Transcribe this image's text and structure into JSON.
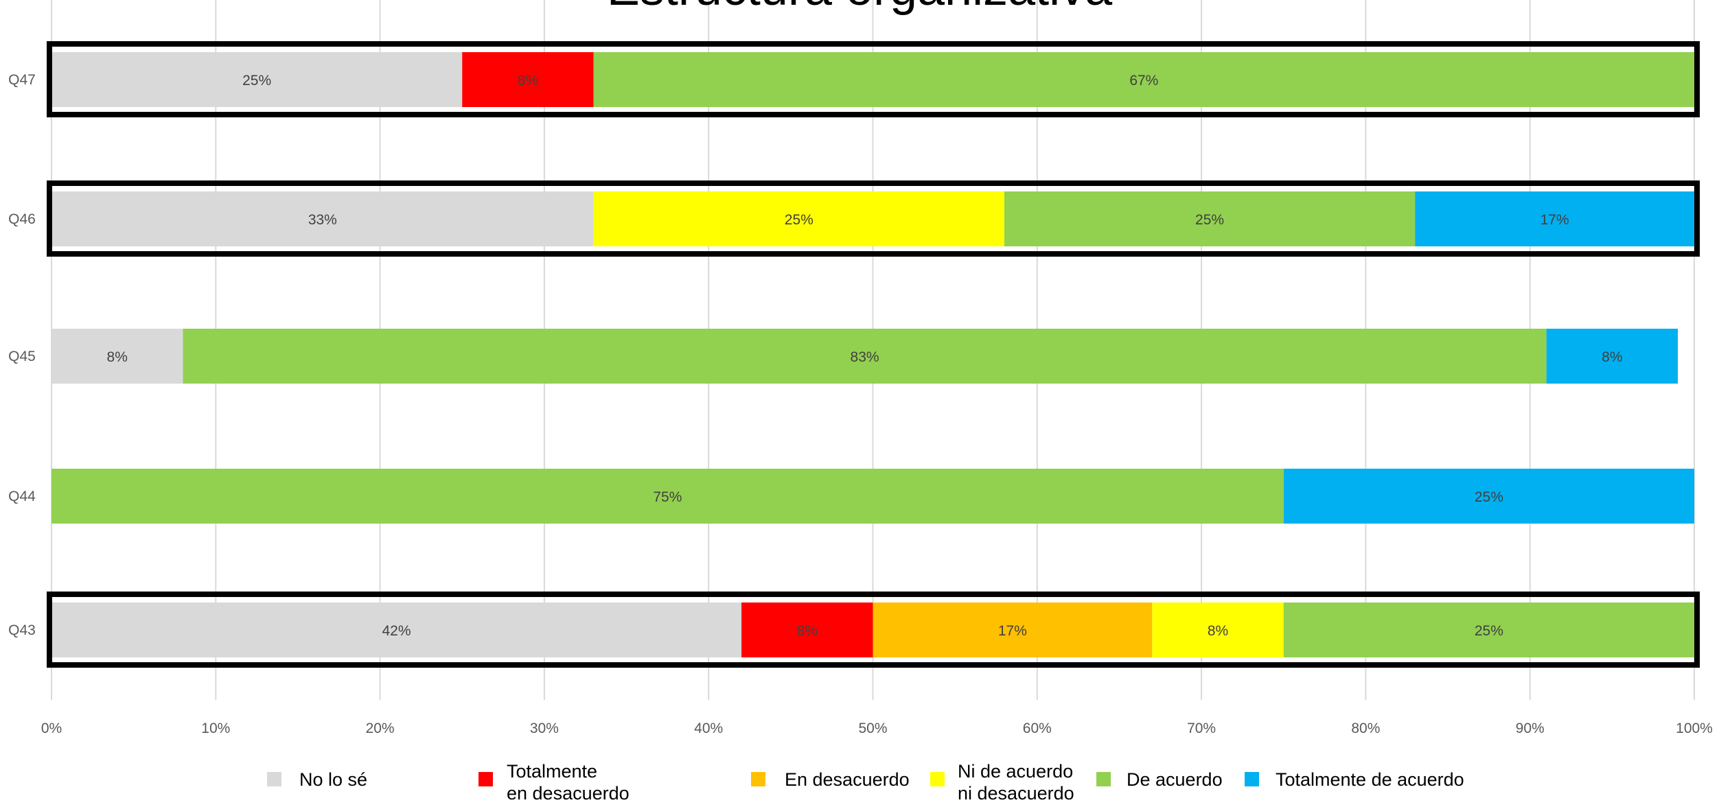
{
  "chart_data": {
    "type": "bar",
    "orientation": "horizontal",
    "stacked": true,
    "percent": true,
    "title": "Estructura organizativa",
    "xlim": [
      0,
      100
    ],
    "x_ticks": [
      "0%",
      "10%",
      "20%",
      "30%",
      "40%",
      "50%",
      "60%",
      "70%",
      "80%",
      "90%",
      "100%"
    ],
    "grid": "vertical",
    "legend_position": "bottom",
    "categories": [
      "Q47",
      "Q46",
      "Q45",
      "Q44",
      "Q43"
    ],
    "highlighted": [
      "Q47",
      "Q46",
      "Q43"
    ],
    "series": [
      {
        "name": "No lo sé",
        "color": "#d9d9d9",
        "values": [
          25,
          33,
          8,
          0,
          42
        ],
        "labels": [
          "25%",
          "33%",
          "8%",
          "",
          "42%"
        ]
      },
      {
        "name": "Totalmente en desacuerdo",
        "color": "#ff0000",
        "values": [
          8,
          0,
          0,
          0,
          8
        ],
        "labels": [
          "8%",
          "",
          "",
          "",
          "8%"
        ]
      },
      {
        "name": "En desacuerdo",
        "color": "#ffc000",
        "values": [
          0,
          0,
          0,
          0,
          17
        ],
        "labels": [
          "",
          "",
          "",
          "",
          "17%"
        ]
      },
      {
        "name": "Ni de acuerdo ni desacuerdo",
        "color": "#ffff00",
        "values": [
          0,
          25,
          0,
          0,
          8
        ],
        "labels": [
          "",
          "25%",
          "",
          "",
          "8%"
        ]
      },
      {
        "name": "De acuerdo",
        "color": "#92d050",
        "values": [
          67,
          25,
          83,
          75,
          25
        ],
        "labels": [
          "67%",
          "25%",
          "83%",
          "75%",
          "25%"
        ]
      },
      {
        "name": "Totalmente de acuerdo",
        "color": "#00b0f0",
        "values": [
          0,
          17,
          8,
          25,
          0
        ],
        "labels": [
          "",
          "17%",
          "8%",
          "25%",
          ""
        ]
      }
    ],
    "legend": [
      {
        "lines": [
          "No lo sé"
        ],
        "color": "#d9d9d9"
      },
      {
        "lines": [
          "Totalmente",
          "en desacuerdo"
        ],
        "color": "#ff0000"
      },
      {
        "lines": [
          "En desacuerdo"
        ],
        "color": "#ffc000"
      },
      {
        "lines": [
          "Ni de acuerdo",
          "ni desacuerdo"
        ],
        "color": "#ffff00"
      },
      {
        "lines": [
          "De acuerdo"
        ],
        "color": "#92d050"
      },
      {
        "lines": [
          "Totalmente de acuerdo"
        ],
        "color": "#00b0f0"
      }
    ]
  }
}
